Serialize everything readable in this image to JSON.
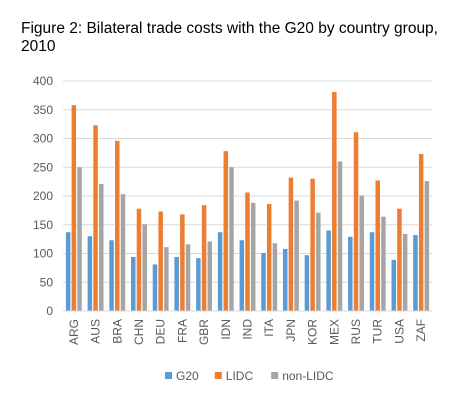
{
  "title": "Figure 2: Bilateral trade costs with the G20 by country group, 2010",
  "chart_data": {
    "type": "bar",
    "categories": [
      "ARG",
      "AUS",
      "BRA",
      "CHN",
      "DEU",
      "FRA",
      "GBR",
      "IDN",
      "IND",
      "ITA",
      "JPN",
      "KOR",
      "MEX",
      "RUS",
      "TUR",
      "USA",
      "ZAF"
    ],
    "series": [
      {
        "name": "G20",
        "color": "#5B9BD5",
        "values": [
          137,
          130,
          123,
          94,
          81,
          94,
          92,
          137,
          123,
          101,
          108,
          97,
          140,
          129,
          137,
          89,
          132
        ]
      },
      {
        "name": "LIDC",
        "color": "#ED7D31",
        "values": [
          358,
          323,
          296,
          178,
          173,
          168,
          184,
          278,
          206,
          186,
          232,
          230,
          381,
          311,
          227,
          178,
          273
        ]
      },
      {
        "name": "non-LIDC",
        "color": "#A5A5A5",
        "values": [
          250,
          221,
          203,
          151,
          111,
          116,
          121,
          250,
          188,
          118,
          192,
          171,
          260,
          201,
          164,
          134,
          226
        ]
      }
    ],
    "ylim": [
      0,
      400
    ],
    "yticks": [
      0,
      50,
      100,
      150,
      200,
      250,
      300,
      350,
      400
    ],
    "xlabel": "",
    "ylabel": "",
    "grid": true,
    "legend_position": "bottom"
  }
}
